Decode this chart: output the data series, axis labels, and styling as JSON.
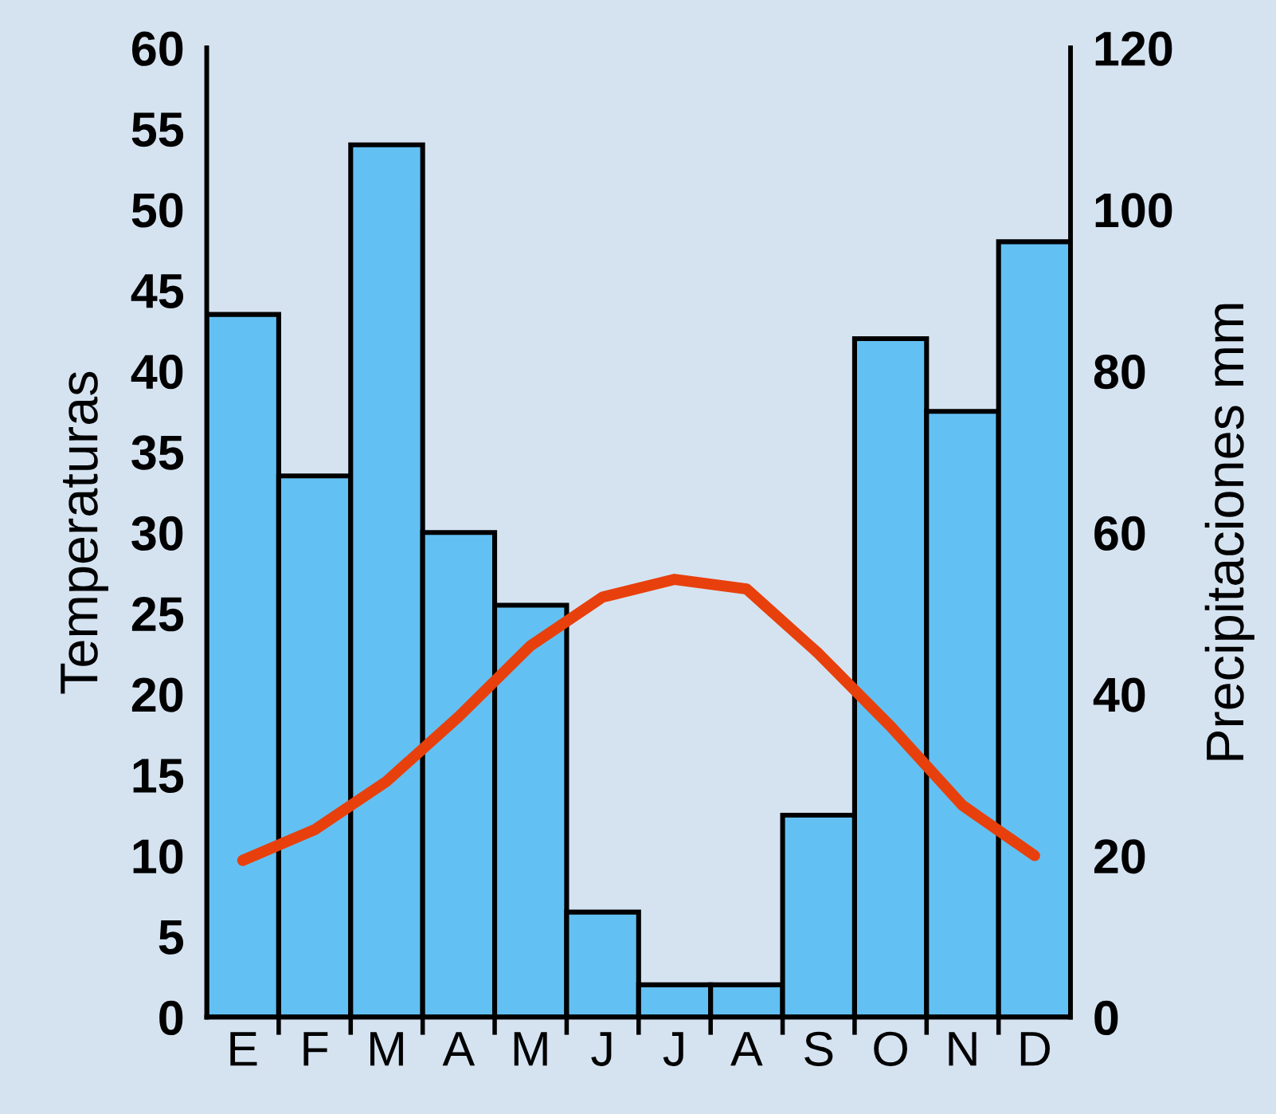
{
  "chart_data": {
    "type": "bar",
    "ylabel": "Temperaturas",
    "y2label": "Precipitaciones mm",
    "categories": [
      "E",
      "F",
      "M",
      "A",
      "M",
      "J",
      "J",
      "A",
      "S",
      "O",
      "N",
      "D"
    ],
    "series": [
      {
        "axis": "y2",
        "color": "#63c0f3",
        "values": [
          87,
          67,
          108,
          60,
          51,
          13,
          4,
          4,
          25,
          84,
          75,
          96
        ]
      },
      {
        "type": "line",
        "axis": "y",
        "color": "#e8400c",
        "values": [
          9.7,
          11.6,
          14.6,
          18.6,
          23,
          26,
          27.1,
          26.5,
          22.5,
          18,
          13.1,
          10
        ]
      }
    ],
    "ylim": [
      0,
      60
    ],
    "yticks": [
      0,
      5,
      10,
      15,
      20,
      25,
      30,
      35,
      40,
      45,
      50,
      55,
      60
    ],
    "y2lim": [
      0,
      120
    ],
    "y2ticks": [
      0,
      20,
      40,
      60,
      80,
      100,
      120
    ],
    "grid": false,
    "legend": false
  }
}
